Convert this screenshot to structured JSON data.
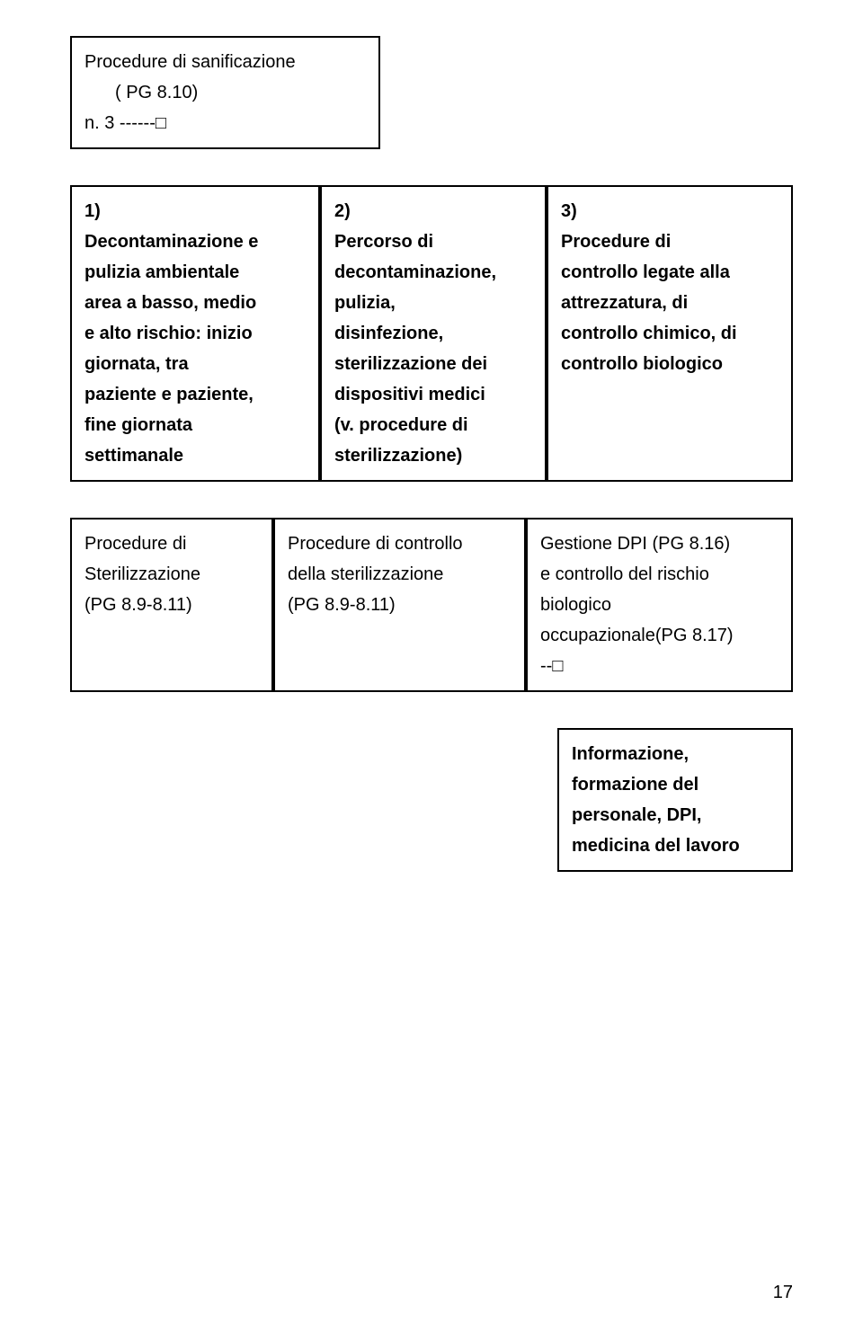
{
  "header_box": {
    "line1": "Procedure di sanificazione",
    "line2": "( PG 8.10)",
    "line3": "n. 3  ------□"
  },
  "row_main": {
    "col1": {
      "n": "1)",
      "lines": [
        "Decontaminazione e",
        "pulizia ambientale",
        "area a basso, medio",
        "e alto rischio: inizio",
        "giornata, tra",
        "paziente e paziente,",
        "fine giornata",
        "settimanale"
      ]
    },
    "col2": {
      "n": "2)",
      "lines": [
        "Percorso di",
        "decontaminazione,",
        "pulizia,",
        "disinfezione,",
        "sterilizzazione dei",
        "dispositivi medici",
        "(v. procedure di",
        "sterilizzazione)"
      ]
    },
    "col3": {
      "n": "3)",
      "lines": [
        "Procedure di",
        "controllo legate alla",
        "attrezzatura, di",
        "controllo chimico, di",
        "controllo biologico"
      ]
    }
  },
  "row_lower": {
    "c1": {
      "lines": [
        "Procedure di",
        "Sterilizzazione",
        "(PG 8.9-8.11)"
      ]
    },
    "c2": {
      "lines": [
        "Procedure di controllo",
        "della sterilizzazione",
        "(PG 8.9-8.11)"
      ]
    },
    "c3": {
      "lines": [
        "Gestione DPI (PG 8.16)",
        "e controllo del rischio",
        "biologico",
        "occupazionale(PG 8.17)",
        "--□"
      ]
    }
  },
  "bottom_box": {
    "lines": [
      "Informazione,",
      "formazione del",
      "personale, DPI,",
      "medicina del lavoro"
    ]
  },
  "page_number": "17"
}
